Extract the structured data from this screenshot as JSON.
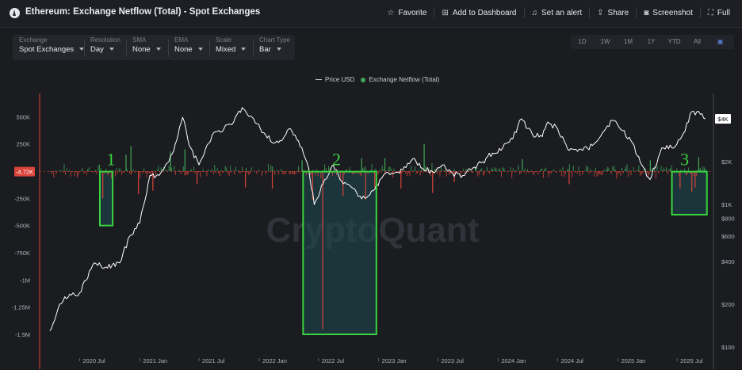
{
  "header": {
    "title": "Ethereum: Exchange Netflow (Total) - Spot Exchanges",
    "actions": [
      {
        "icon": "star-icon",
        "label": "Favorite"
      },
      {
        "icon": "add-dashboard-icon",
        "label": "Add to Dashboard"
      },
      {
        "icon": "bell-icon",
        "label": "Set an alert"
      },
      {
        "icon": "share-icon",
        "label": "Share"
      },
      {
        "icon": "camera-icon",
        "label": "Screenshot"
      },
      {
        "icon": "fullscreen-icon",
        "label": "Full"
      }
    ]
  },
  "controls": [
    {
      "label": "Exchange",
      "value": "Spot Exchanges"
    },
    {
      "label": "Resolution",
      "value": "Day"
    },
    {
      "label": "SMA",
      "value": "None"
    },
    {
      "label": "EMA",
      "value": "None"
    },
    {
      "label": "Scale",
      "value": "Mixed"
    },
    {
      "label": "Chart Type",
      "value": "Bar"
    }
  ],
  "ranges": [
    "1D",
    "1W",
    "1M",
    "1Y",
    "YTD",
    "All"
  ],
  "calendar_icon": "calendar-icon",
  "colors": {
    "background": "#1b1c20",
    "positive": "#3fa857",
    "negative": "#d9443a",
    "price": "#ffffff",
    "highlight": "#39d43f",
    "highlight_fill": "#1d4a50"
  },
  "watermark": "CryptoQuant",
  "chart_data": {
    "type": "bar",
    "legend": [
      "Price USD",
      "Exchange Netflow (Total)"
    ],
    "legend_position": "top-center",
    "x_ticks": [
      "2020 Jul",
      "2021 Jan",
      "2021 Jul",
      "2022 Jan",
      "2022 Jul",
      "2023 Jan",
      "2023 Jul",
      "2024 Jan",
      "2024 Jul",
      "2025 Jan",
      "2025 Jul"
    ],
    "y_left_ticks": [
      "500K",
      "250K",
      "-4.72K",
      "-250K",
      "-500K",
      "-750K",
      "-1M",
      "-1.25M",
      "-1.5M"
    ],
    "y_left_values": [
      500000,
      250000,
      -4720,
      -250000,
      -500000,
      -750000,
      -1000000,
      -1250000,
      -1500000
    ],
    "y_right_ticks": [
      "$4K",
      "$2K",
      "$1K",
      "$800",
      "$600",
      "$400",
      "$200",
      "$100"
    ],
    "y_right_values": [
      4000,
      2000,
      1000,
      800,
      600,
      400,
      200,
      100
    ],
    "current_netflow_label": "-4.72K",
    "current_price_label": "$4K",
    "price_series": {
      "name": "Price USD",
      "points": [
        [
          "2020-04-01",
          130
        ],
        [
          "2020-05-01",
          200
        ],
        [
          "2020-06-01",
          235
        ],
        [
          "2020-07-01",
          240
        ],
        [
          "2020-08-15",
          390
        ],
        [
          "2020-09-15",
          360
        ],
        [
          "2020-11-01",
          390
        ],
        [
          "2020-12-01",
          600
        ],
        [
          "2021-01-01",
          740
        ],
        [
          "2021-02-01",
          1600
        ],
        [
          "2021-03-01",
          1600
        ],
        [
          "2021-04-15",
          2400
        ],
        [
          "2021-05-12",
          4100
        ],
        [
          "2021-06-01",
          2600
        ],
        [
          "2021-07-01",
          1900
        ],
        [
          "2021-08-15",
          3200
        ],
        [
          "2021-09-15",
          3400
        ],
        [
          "2021-10-15",
          3800
        ],
        [
          "2021-11-10",
          4800
        ],
        [
          "2021-12-15",
          4000
        ],
        [
          "2022-01-15",
          3200
        ],
        [
          "2022-02-15",
          2700
        ],
        [
          "2022-03-15",
          2900
        ],
        [
          "2022-04-01",
          3400
        ],
        [
          "2022-05-01",
          2800
        ],
        [
          "2022-06-01",
          1800
        ],
        [
          "2022-06-18",
          1000
        ],
        [
          "2022-07-15",
          1400
        ],
        [
          "2022-08-15",
          1900
        ],
        [
          "2022-09-15",
          1400
        ],
        [
          "2022-10-15",
          1300
        ],
        [
          "2022-11-10",
          1100
        ],
        [
          "2022-12-15",
          1250
        ],
        [
          "2023-01-15",
          1600
        ],
        [
          "2023-02-15",
          1650
        ],
        [
          "2023-03-15",
          1750
        ],
        [
          "2023-04-15",
          2100
        ],
        [
          "2023-05-15",
          1800
        ],
        [
          "2023-06-15",
          1700
        ],
        [
          "2023-07-15",
          1900
        ],
        [
          "2023-08-15",
          1650
        ],
        [
          "2023-09-15",
          1600
        ],
        [
          "2023-10-15",
          1800
        ],
        [
          "2023-11-15",
          2000
        ],
        [
          "2023-12-15",
          2300
        ],
        [
          "2024-01-15",
          2500
        ],
        [
          "2024-02-15",
          2900
        ],
        [
          "2024-03-12",
          4000
        ],
        [
          "2024-04-15",
          3100
        ],
        [
          "2024-05-15",
          3000
        ],
        [
          "2024-06-01",
          3800
        ],
        [
          "2024-07-01",
          3400
        ],
        [
          "2024-08-05",
          2400
        ],
        [
          "2024-09-15",
          2400
        ],
        [
          "2024-10-15",
          2600
        ],
        [
          "2024-11-15",
          3200
        ],
        [
          "2024-12-15",
          3900
        ],
        [
          "2025-01-15",
          3300
        ],
        [
          "2025-02-15",
          2700
        ],
        [
          "2025-03-15",
          1900
        ],
        [
          "2025-04-09",
          1500
        ],
        [
          "2025-05-15",
          2500
        ],
        [
          "2025-06-15",
          2500
        ],
        [
          "2025-07-15",
          3000
        ],
        [
          "2025-08-15",
          4500
        ],
        [
          "2025-09-10",
          4300
        ],
        [
          "2025-09-25",
          4000
        ]
      ]
    },
    "netflow_series": {
      "name": "Exchange Netflow (Total)",
      "spikes": [
        [
          "2020-09-10",
          -250000
        ],
        [
          "2020-11-20",
          150000
        ],
        [
          "2020-12-05",
          230000
        ],
        [
          "2020-12-28",
          -210000
        ],
        [
          "2021-02-10",
          -180000
        ],
        [
          "2021-04-05",
          180000
        ],
        [
          "2021-05-19",
          200000
        ],
        [
          "2021-06-25",
          -120000
        ],
        [
          "2021-11-20",
          -150000
        ],
        [
          "2022-02-10",
          -160000
        ],
        [
          "2022-05-12",
          100000
        ],
        [
          "2022-06-13",
          -260000
        ],
        [
          "2022-07-14",
          -1450000
        ],
        [
          "2022-09-14",
          -230000
        ],
        [
          "2022-11-10",
          120000
        ],
        [
          "2022-11-22",
          -260000
        ],
        [
          "2022-12-20",
          -150000
        ],
        [
          "2023-01-20",
          120000
        ],
        [
          "2023-03-10",
          -160000
        ],
        [
          "2023-05-20",
          250000
        ],
        [
          "2023-06-15",
          -200000
        ],
        [
          "2023-08-20",
          -100000
        ],
        [
          "2024-03-15",
          110000
        ],
        [
          "2024-08-05",
          -120000
        ],
        [
          "2025-04-10",
          100000
        ],
        [
          "2025-07-10",
          -160000
        ],
        [
          "2025-08-15",
          -190000
        ],
        [
          "2025-08-25",
          -150000
        ],
        [
          "2025-09-05",
          130000
        ]
      ],
      "noise_amplitude": 60000
    },
    "annotations": [
      {
        "label": "1",
        "from": "2020-09-01",
        "to": "2020-10-10",
        "ymin": -500000,
        "ymax": -4720
      },
      {
        "label": "2",
        "from": "2022-05-15",
        "to": "2022-12-25",
        "ymin": -1500000,
        "ymax": -4720
      },
      {
        "label": "3",
        "from": "2025-06-15",
        "to": "2025-09-30",
        "ymin": -400000,
        "ymax": -4720
      }
    ]
  }
}
